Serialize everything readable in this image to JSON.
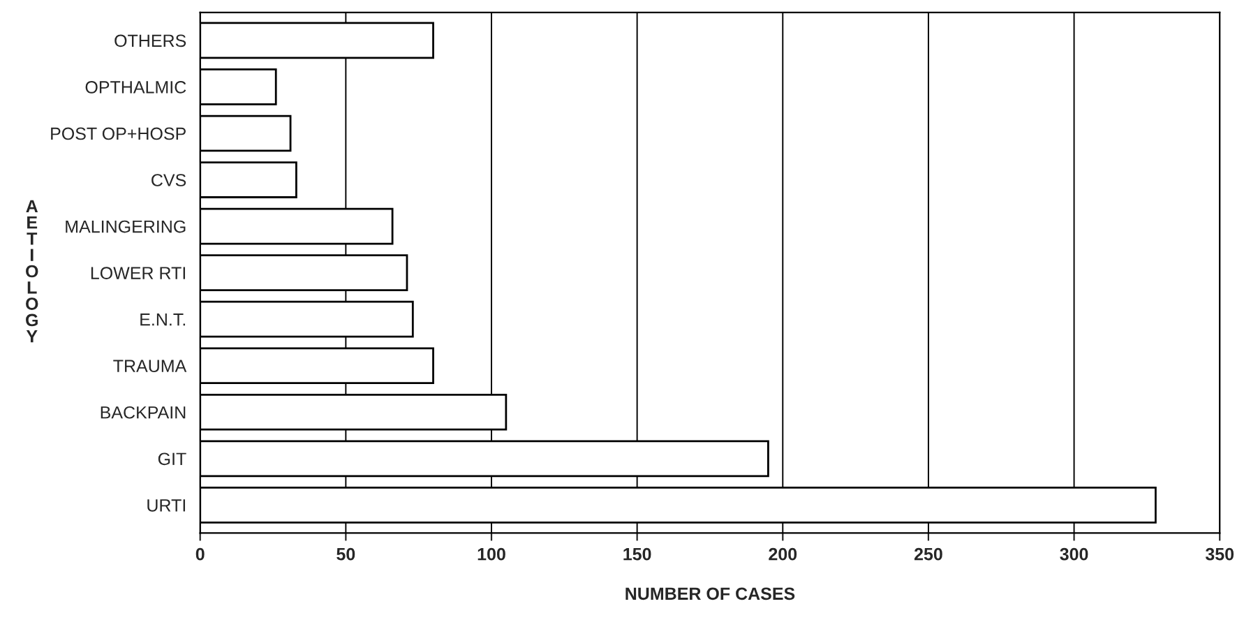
{
  "chart_data": {
    "type": "bar",
    "orientation": "horizontal",
    "xlabel": "NUMBER OF CASES",
    "ylabel": "AETIOLOGY",
    "categories": [
      "OTHERS",
      "OPTHALMIC",
      "POST OP+HOSP",
      "CVS",
      "MALINGERING",
      "LOWER RTI",
      "E.N.T.",
      "TRAUMA",
      "BACKPAIN",
      "GIT",
      "URTI"
    ],
    "values": [
      80,
      26,
      31,
      33,
      66,
      71,
      73,
      80,
      105,
      195,
      328
    ],
    "color": "#ffffff",
    "xlim": [
      0,
      350
    ],
    "xticks": [
      0,
      50,
      100,
      150,
      200,
      250,
      300,
      350
    ],
    "grid": "x"
  }
}
